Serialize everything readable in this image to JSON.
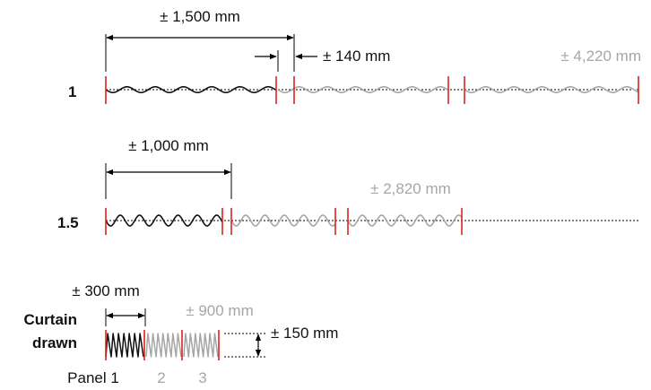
{
  "rows": [
    {
      "label": "1",
      "panel_width": "± 1,500 mm",
      "gap": "± 140 mm",
      "total": "± 4,220 mm"
    },
    {
      "label": "1.5",
      "panel_width": "± 1,000 mm",
      "total": "± 2,820 mm"
    },
    {
      "label_line1": "Curtain",
      "label_line2": "drawn",
      "panel_width": "± 300 mm",
      "total": "± 900 mm",
      "depth": "± 150 mm"
    }
  ],
  "panels": [
    "Panel 1",
    "2",
    "3"
  ],
  "colors": {
    "active": "#111111",
    "inactive": "#a6a6a6",
    "panel_edge": "#e02020",
    "dim_line": "#000000"
  }
}
